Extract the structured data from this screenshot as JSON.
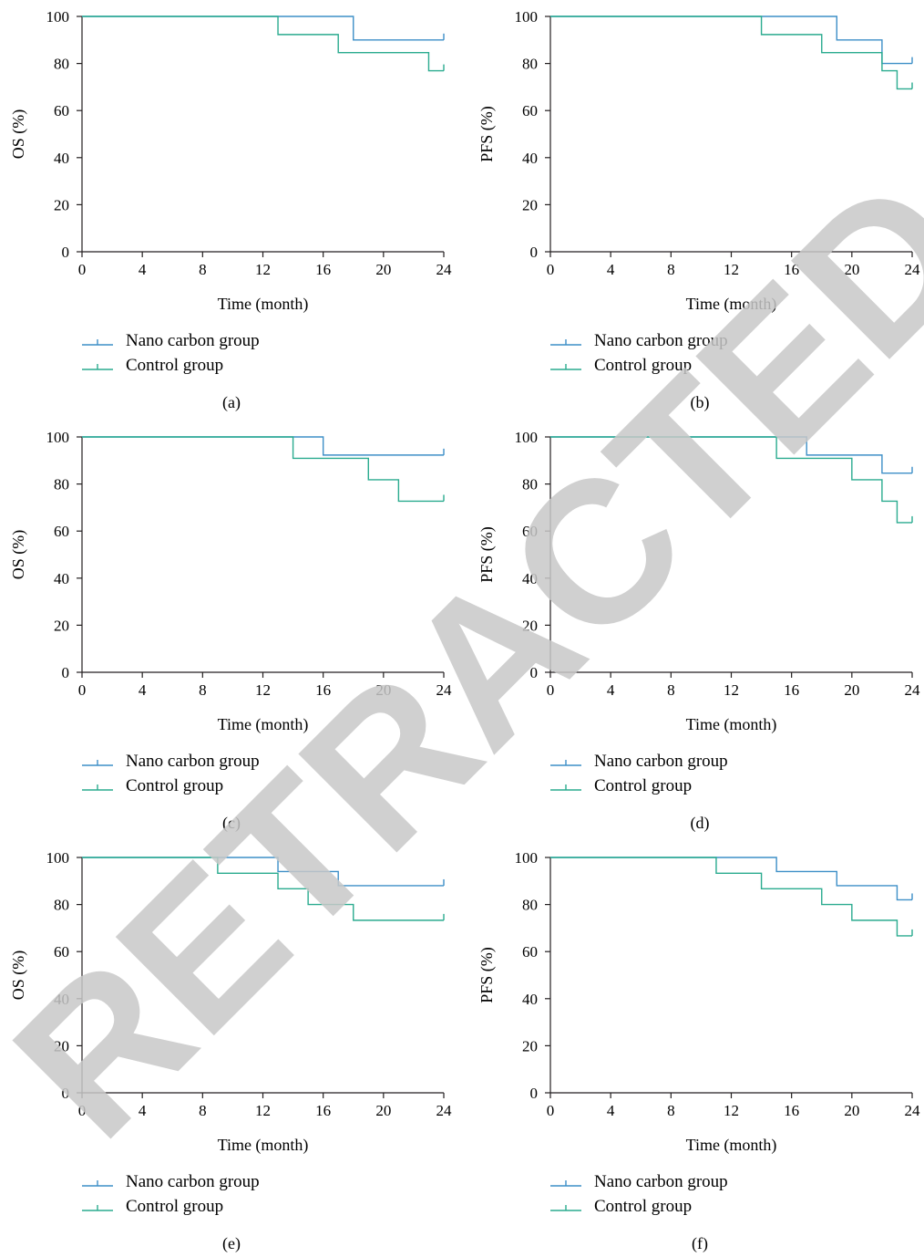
{
  "figure": {
    "watermark": "RETRACTED",
    "colors": {
      "nano": "#3d8fc7",
      "control": "#2aab8f",
      "axis": "#231f20",
      "watermark": "#c8c8c8"
    }
  },
  "chart_data": [
    {
      "type": "line",
      "step": true,
      "panel_label": "(a)",
      "xlabel": "Time (month)",
      "ylabel": "OS (%)",
      "xlim": [
        0,
        24
      ],
      "ylim": [
        0,
        100
      ],
      "xticks": [
        0,
        4,
        8,
        12,
        16,
        20,
        24
      ],
      "yticks": [
        0,
        20,
        40,
        60,
        80,
        100
      ],
      "grid": false,
      "legend_position": "bottom-left",
      "series": [
        {
          "name": "Nano carbon group",
          "x": [
            0,
            18,
            24
          ],
          "y": [
            100,
            90,
            90
          ],
          "censor": [
            {
              "x": 24,
              "y": 90
            }
          ]
        },
        {
          "name": "Control group",
          "x": [
            0,
            13,
            17,
            23,
            24
          ],
          "y": [
            100,
            92.3,
            84.6,
            76.9,
            76.9
          ],
          "censor": [
            {
              "x": 24,
              "y": 76.9
            }
          ]
        }
      ]
    },
    {
      "type": "line",
      "step": true,
      "panel_label": "(b)",
      "xlabel": "Time (month)",
      "ylabel": "PFS (%)",
      "xlim": [
        0,
        24
      ],
      "ylim": [
        0,
        100
      ],
      "xticks": [
        0,
        4,
        8,
        12,
        16,
        20,
        24
      ],
      "yticks": [
        0,
        20,
        40,
        60,
        80,
        100
      ],
      "grid": false,
      "legend_position": "bottom-left",
      "series": [
        {
          "name": "Nano carbon group",
          "x": [
            0,
            19,
            22,
            24
          ],
          "y": [
            100,
            90,
            80,
            80
          ],
          "censor": [
            {
              "x": 24,
              "y": 80
            }
          ]
        },
        {
          "name": "Control group",
          "x": [
            0,
            14,
            18,
            22,
            23,
            24
          ],
          "y": [
            100,
            92.3,
            84.6,
            76.9,
            69.2,
            69.2
          ],
          "censor": [
            {
              "x": 24,
              "y": 69.2
            }
          ]
        }
      ]
    },
    {
      "type": "line",
      "step": true,
      "panel_label": "(c)",
      "xlabel": "Time (month)",
      "ylabel": "OS (%)",
      "xlim": [
        0,
        24
      ],
      "ylim": [
        0,
        100
      ],
      "xticks": [
        0,
        4,
        8,
        12,
        16,
        20,
        24
      ],
      "yticks": [
        0,
        20,
        40,
        60,
        80,
        100
      ],
      "grid": false,
      "legend_position": "bottom-left",
      "series": [
        {
          "name": "Nano carbon group",
          "x": [
            0,
            16,
            24
          ],
          "y": [
            100,
            92.3,
            92.3
          ],
          "censor": [
            {
              "x": 24,
              "y": 92.3
            }
          ]
        },
        {
          "name": "Control group",
          "x": [
            0,
            14,
            19,
            21,
            24
          ],
          "y": [
            100,
            90.9,
            81.8,
            72.7,
            72.7
          ],
          "censor": [
            {
              "x": 24,
              "y": 72.7
            }
          ]
        }
      ]
    },
    {
      "type": "line",
      "step": true,
      "panel_label": "(d)",
      "xlabel": "Time (month)",
      "ylabel": "PFS (%)",
      "xlim": [
        0,
        24
      ],
      "ylim": [
        0,
        100
      ],
      "xticks": [
        0,
        4,
        8,
        12,
        16,
        20,
        24
      ],
      "yticks": [
        0,
        20,
        40,
        60,
        80,
        100
      ],
      "grid": false,
      "legend_position": "bottom-left",
      "series": [
        {
          "name": "Nano carbon group",
          "x": [
            0,
            17,
            22,
            24
          ],
          "y": [
            100,
            92.3,
            84.6,
            84.6
          ],
          "censor": [
            {
              "x": 24,
              "y": 84.6
            }
          ]
        },
        {
          "name": "Control group",
          "x": [
            0,
            15,
            20,
            22,
            23,
            24
          ],
          "y": [
            100,
            90.9,
            81.8,
            72.7,
            63.6,
            63.6
          ],
          "censor": [
            {
              "x": 24,
              "y": 63.6
            }
          ]
        }
      ]
    },
    {
      "type": "line",
      "step": true,
      "panel_label": "(e)",
      "xlabel": "Time (month)",
      "ylabel": "OS (%)",
      "xlim": [
        0,
        24
      ],
      "ylim": [
        0,
        100
      ],
      "xticks": [
        0,
        4,
        8,
        12,
        16,
        20,
        24
      ],
      "yticks": [
        0,
        20,
        40,
        60,
        80,
        100
      ],
      "grid": false,
      "legend_position": "bottom-left",
      "series": [
        {
          "name": "Nano carbon group",
          "x": [
            0,
            13,
            17,
            24
          ],
          "y": [
            100,
            94,
            88,
            88
          ],
          "censor": [
            {
              "x": 24,
              "y": 88
            }
          ]
        },
        {
          "name": "Control group",
          "x": [
            0,
            9,
            13,
            15,
            18,
            24
          ],
          "y": [
            100,
            93.3,
            86.7,
            80,
            73.3,
            73.3
          ],
          "censor": [
            {
              "x": 24,
              "y": 73.3
            }
          ]
        }
      ]
    },
    {
      "type": "line",
      "step": true,
      "panel_label": "(f)",
      "xlabel": "Time (month)",
      "ylabel": "PFS (%)",
      "xlim": [
        0,
        24
      ],
      "ylim": [
        0,
        100
      ],
      "xticks": [
        0,
        4,
        8,
        12,
        16,
        20,
        24
      ],
      "yticks": [
        0,
        20,
        40,
        60,
        80,
        100
      ],
      "grid": false,
      "legend_position": "bottom-left",
      "series": [
        {
          "name": "Nano carbon group",
          "x": [
            0,
            15,
            19,
            23,
            24
          ],
          "y": [
            100,
            94,
            88,
            82,
            82
          ],
          "censor": [
            {
              "x": 24,
              "y": 82
            }
          ]
        },
        {
          "name": "Control group",
          "x": [
            0,
            11,
            14,
            18,
            20,
            23,
            24
          ],
          "y": [
            100,
            93.3,
            86.7,
            80,
            73.3,
            66.7,
            66.7
          ],
          "censor": [
            {
              "x": 24,
              "y": 66.7
            }
          ]
        }
      ]
    }
  ]
}
